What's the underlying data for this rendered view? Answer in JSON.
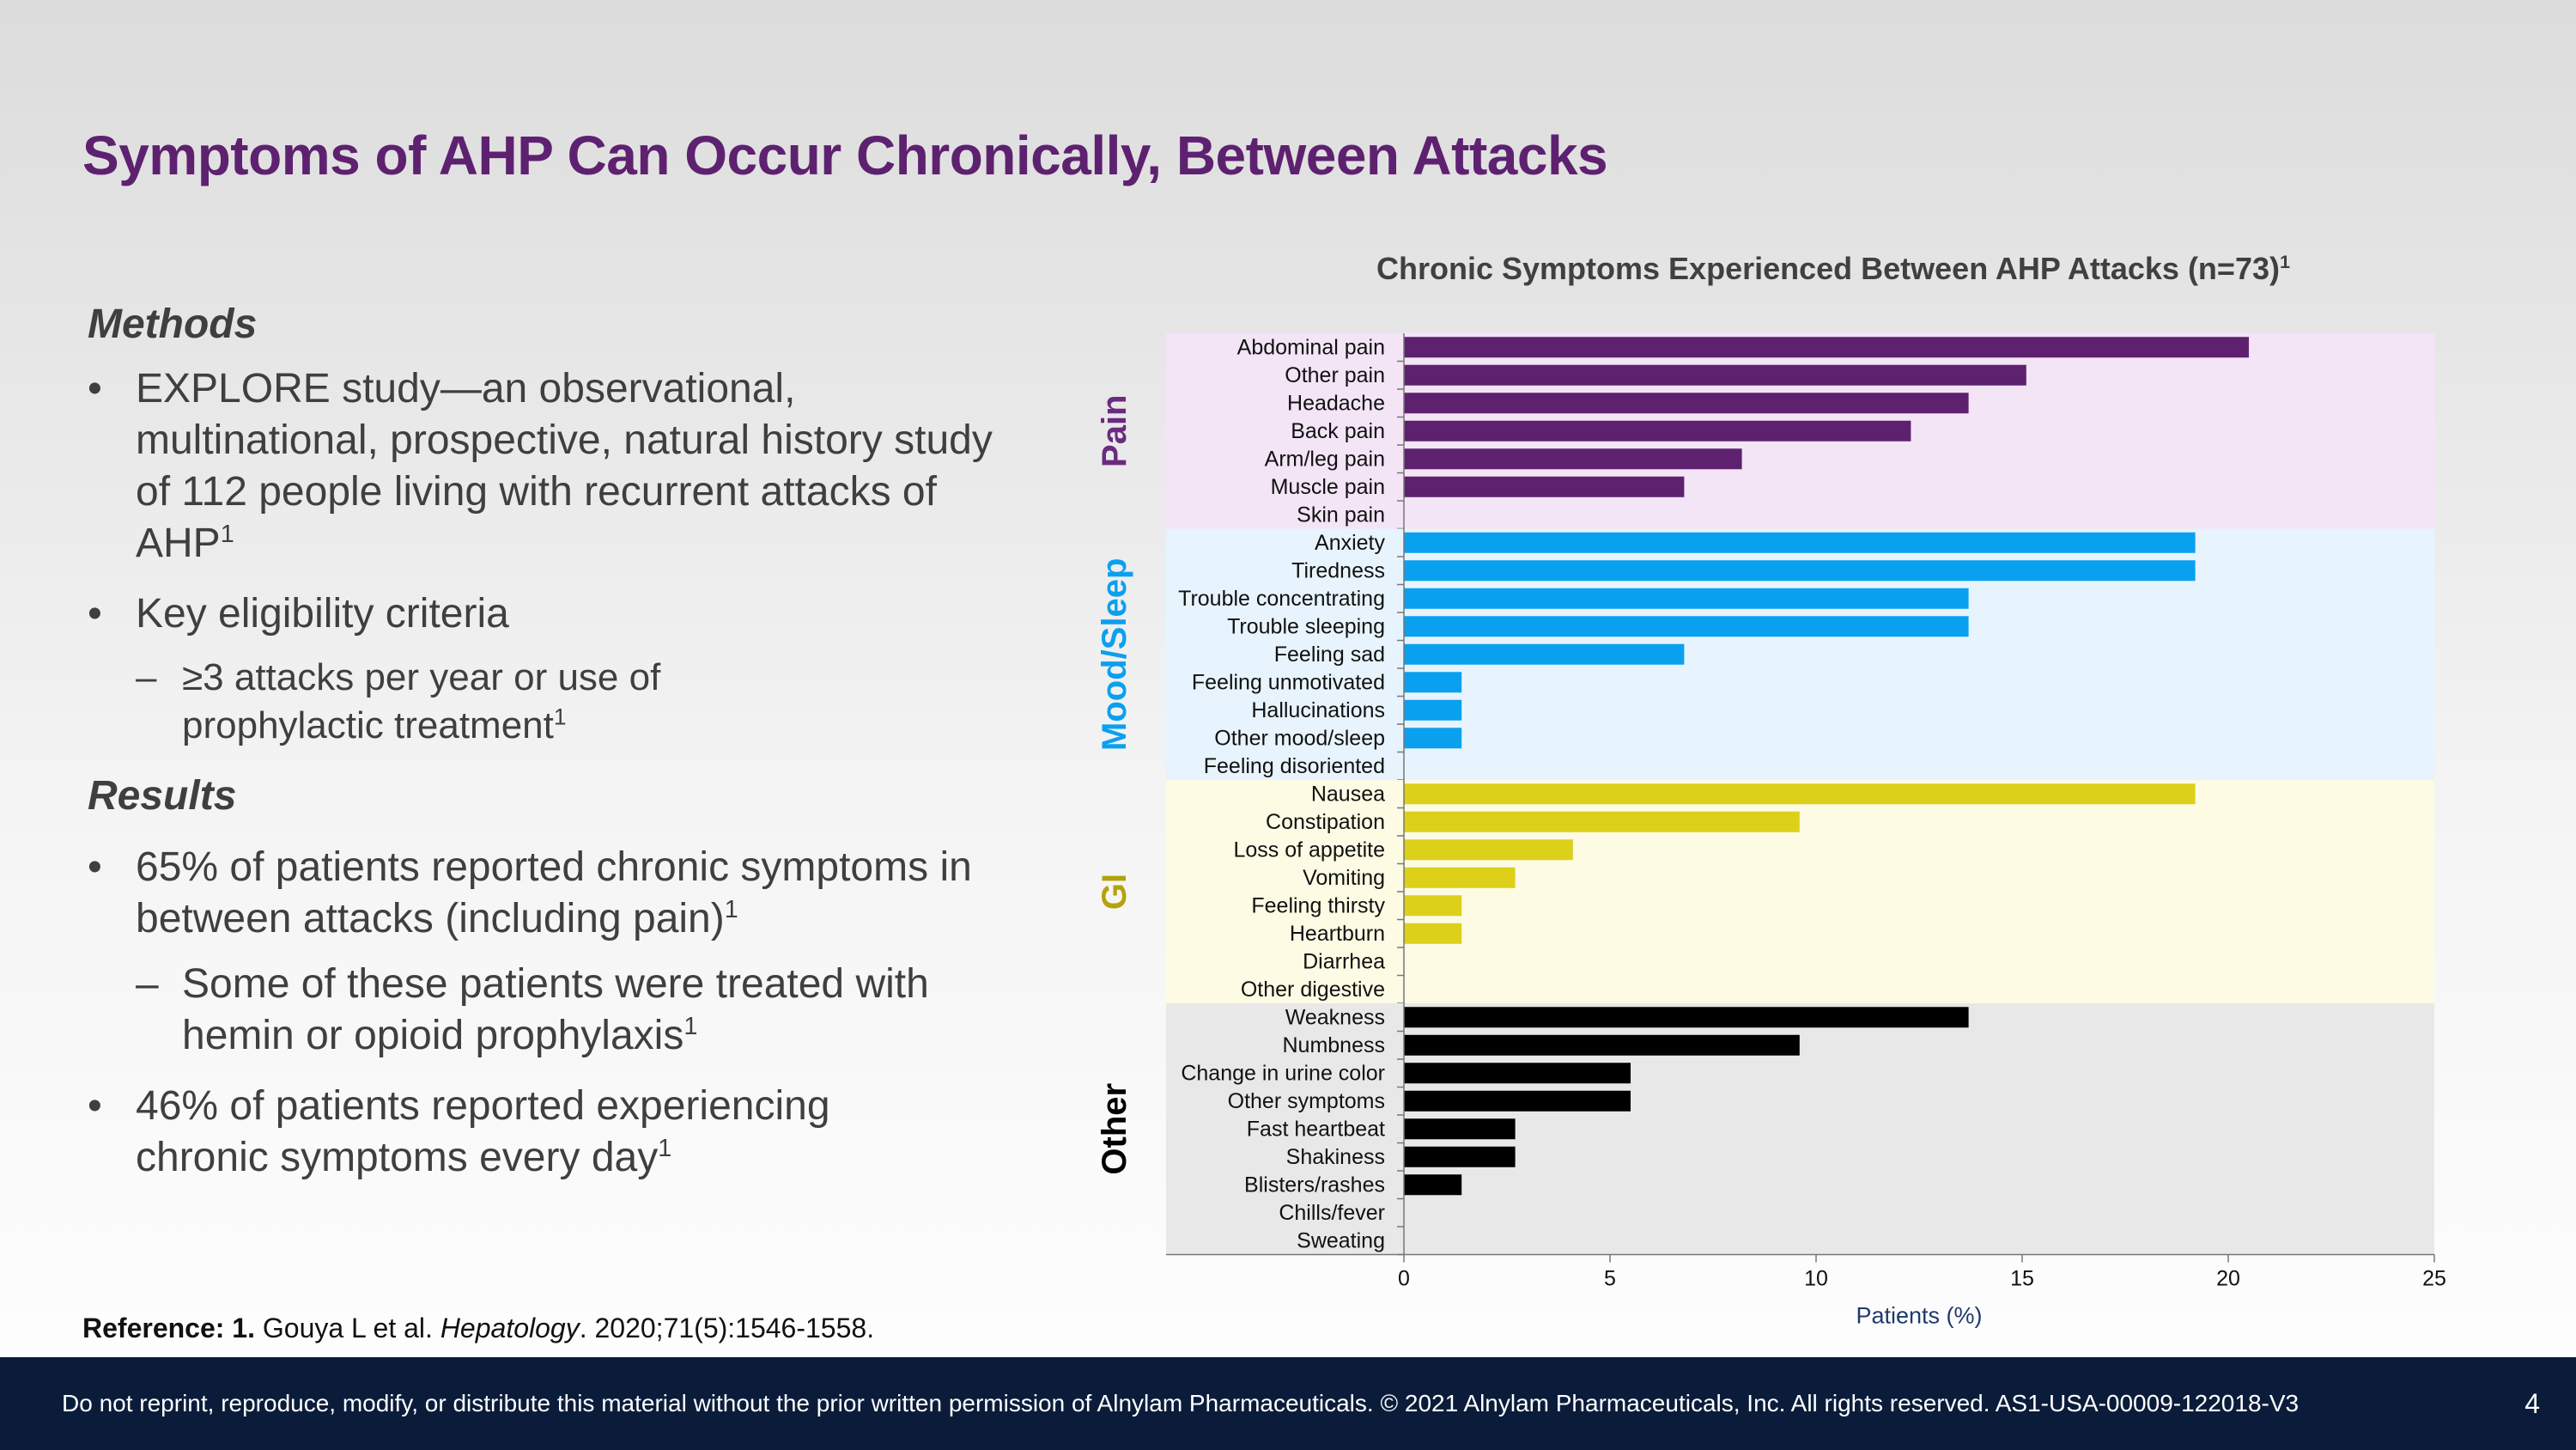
{
  "slide": {
    "title": "Symptoms of AHP Can Occur Chronically, Between Attacks",
    "page_number": "4"
  },
  "methods": {
    "heading": "Methods",
    "bullet1": "EXPLORE study—an observational, multinational, prospective, natural history study of 112 people living with recurrent attacks of AHP",
    "bullet1_sup": "1",
    "bullet2": "Key eligibility criteria",
    "sub1": "≥3 attacks per year or use of prophylactic treatment",
    "sub1_sup": "1"
  },
  "results": {
    "heading": "Results",
    "bullet1": "65% of patients reported chronic symptoms in between attacks (including pain)",
    "bullet1_sup": "1",
    "sub1": "Some of these patients were treated with hemin or opioid prophylaxis",
    "sub1_sup": "1",
    "bullet2": "46% of patients reported experiencing chronic symptoms every day",
    "bullet2_sup": "1"
  },
  "bullet_char": "•",
  "dash_char": "–",
  "reference": {
    "label": "Reference:",
    "num": "1.",
    "authors": "Gouya L et al.",
    "journal": "Hepatology",
    "citation": ". 2020;71(5):1546-1558."
  },
  "footer": {
    "text": "Do not reprint, reproduce, modify, or distribute this material without the prior written permission of Alnylam Pharmaceuticals. © 2021 Alnylam Pharmaceuticals, Inc. All rights reserved. AS1-USA-00009-122018-V3"
  },
  "chart_data": {
    "type": "bar",
    "orientation": "horizontal",
    "title": "Chronic Symptoms Experienced Between AHP Attacks (n=73)",
    "title_sup": "1",
    "xlabel": "Patients (%)",
    "xlim": [
      0,
      25
    ],
    "xticks": [
      0,
      5,
      10,
      15,
      20,
      25
    ],
    "groups": [
      {
        "name": "Pain",
        "color": "#5e2170",
        "bg": "#f3e4f6",
        "label_color": "#6a2b80",
        "items": [
          {
            "label": "Abdominal pain",
            "value": 20.5
          },
          {
            "label": "Other pain",
            "value": 15.1
          },
          {
            "label": "Headache",
            "value": 13.7
          },
          {
            "label": "Back pain",
            "value": 12.3
          },
          {
            "label": "Arm/leg pain",
            "value": 8.2
          },
          {
            "label": "Muscle pain",
            "value": 6.8
          },
          {
            "label": "Skin pain",
            "value": 0
          }
        ]
      },
      {
        "name": "Mood/Sleep",
        "color": "#0aa0f0",
        "bg": "#e8f4fd",
        "label_color": "#0aa0f0",
        "items": [
          {
            "label": "Anxiety",
            "value": 19.2
          },
          {
            "label": "Tiredness",
            "value": 19.2
          },
          {
            "label": "Trouble concentrating",
            "value": 13.7
          },
          {
            "label": "Trouble sleeping",
            "value": 13.7
          },
          {
            "label": "Feeling sad",
            "value": 6.8
          },
          {
            "label": "Feeling unmotivated",
            "value": 1.4
          },
          {
            "label": "Hallucinations",
            "value": 1.4
          },
          {
            "label": "Other mood/sleep",
            "value": 1.4
          },
          {
            "label": "Feeling disoriented",
            "value": 0
          }
        ]
      },
      {
        "name": "GI",
        "color": "#dcd01a",
        "bg": "#fdfbe4",
        "label_color": "#b3a30c",
        "items": [
          {
            "label": "Nausea",
            "value": 19.2
          },
          {
            "label": "Constipation",
            "value": 9.6
          },
          {
            "label": "Loss of appetite",
            "value": 4.1
          },
          {
            "label": "Vomiting",
            "value": 2.7
          },
          {
            "label": "Feeling thirsty",
            "value": 1.4
          },
          {
            "label": "Heartburn",
            "value": 1.4
          },
          {
            "label": "Diarrhea",
            "value": 0
          },
          {
            "label": "Other digestive",
            "value": 0
          }
        ]
      },
      {
        "name": "Other",
        "color": "#000000",
        "bg": "#e8e8e8",
        "label_color": "#000000",
        "items": [
          {
            "label": "Weakness",
            "value": 13.7
          },
          {
            "label": "Numbness",
            "value": 9.6
          },
          {
            "label": "Change in urine color",
            "value": 5.5
          },
          {
            "label": "Other symptoms",
            "value": 5.5
          },
          {
            "label": "Fast heartbeat",
            "value": 2.7
          },
          {
            "label": "Shakiness",
            "value": 2.7
          },
          {
            "label": "Blisters/rashes",
            "value": 1.4
          },
          {
            "label": "Chills/fever",
            "value": 0
          },
          {
            "label": "Sweating",
            "value": 0
          }
        ]
      }
    ]
  }
}
